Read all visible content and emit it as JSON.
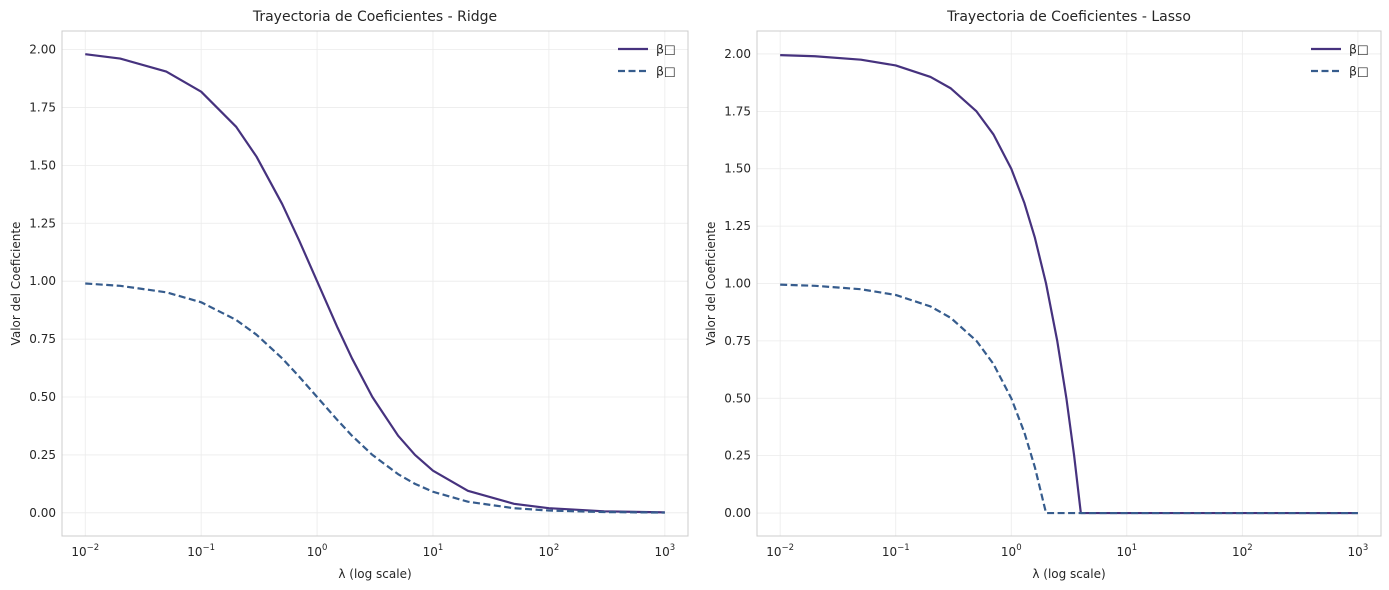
{
  "chart_data": [
    {
      "type": "line",
      "title": "Trayectoria de Coeficientes - Ridge",
      "xlabel": "λ (log scale)",
      "ylabel": "Valor del Coeficiente",
      "xscale": "log",
      "xlim": [
        0.0063,
        1585
      ],
      "ylim": [
        -0.1,
        2.08
      ],
      "xticks": [
        {
          "value": 0.01,
          "base": "10",
          "exp": "−2"
        },
        {
          "value": 0.1,
          "base": "10",
          "exp": "−1"
        },
        {
          "value": 1,
          "base": "10",
          "exp": "0"
        },
        {
          "value": 10,
          "base": "10",
          "exp": "1"
        },
        {
          "value": 100,
          "base": "10",
          "exp": "2"
        },
        {
          "value": 1000,
          "base": "10",
          "exp": "3"
        }
      ],
      "yticks": [
        "0.00",
        "0.25",
        "0.50",
        "0.75",
        "1.00",
        "1.25",
        "1.50",
        "1.75",
        "2.00"
      ],
      "grid": true,
      "legend_position": "top-right",
      "series": [
        {
          "name": "β□",
          "color": "#46327e",
          "style": "solid",
          "points": [
            [
              0.01,
              1.98
            ],
            [
              0.02,
              1.961
            ],
            [
              0.05,
              1.905
            ],
            [
              0.1,
              1.818
            ],
            [
              0.2,
              1.667
            ],
            [
              0.3,
              1.538
            ],
            [
              0.5,
              1.333
            ],
            [
              0.7,
              1.176
            ],
            [
              1,
              1.0
            ],
            [
              1.5,
              0.8
            ],
            [
              2,
              0.667
            ],
            [
              3,
              0.5
            ],
            [
              5,
              0.333
            ],
            [
              7,
              0.25
            ],
            [
              10,
              0.182
            ],
            [
              20,
              0.095
            ],
            [
              50,
              0.039
            ],
            [
              100,
              0.02
            ],
            [
              300,
              0.0066
            ],
            [
              1000,
              0.002
            ]
          ]
        },
        {
          "name": "β□",
          "color": "#365c8d",
          "style": "dashed",
          "points": [
            [
              0.01,
              0.99
            ],
            [
              0.02,
              0.98
            ],
            [
              0.05,
              0.952
            ],
            [
              0.1,
              0.909
            ],
            [
              0.2,
              0.833
            ],
            [
              0.3,
              0.769
            ],
            [
              0.5,
              0.667
            ],
            [
              0.7,
              0.588
            ],
            [
              1,
              0.5
            ],
            [
              1.5,
              0.4
            ],
            [
              2,
              0.333
            ],
            [
              3,
              0.25
            ],
            [
              5,
              0.167
            ],
            [
              7,
              0.125
            ],
            [
              10,
              0.091
            ],
            [
              20,
              0.048
            ],
            [
              50,
              0.02
            ],
            [
              100,
              0.01
            ],
            [
              300,
              0.0033
            ],
            [
              1000,
              0.001
            ]
          ]
        }
      ]
    },
    {
      "type": "line",
      "title": "Trayectoria de Coeficientes - Lasso",
      "xlabel": "λ (log scale)",
      "ylabel": "Valor del Coeficiente",
      "xscale": "log",
      "xlim": [
        0.0063,
        1585
      ],
      "ylim": [
        -0.1,
        2.1
      ],
      "xticks": [
        {
          "value": 0.01,
          "base": "10",
          "exp": "−2"
        },
        {
          "value": 0.1,
          "base": "10",
          "exp": "−1"
        },
        {
          "value": 1,
          "base": "10",
          "exp": "0"
        },
        {
          "value": 10,
          "base": "10",
          "exp": "1"
        },
        {
          "value": 100,
          "base": "10",
          "exp": "2"
        },
        {
          "value": 1000,
          "base": "10",
          "exp": "3"
        }
      ],
      "yticks": [
        "0.00",
        "0.25",
        "0.50",
        "0.75",
        "1.00",
        "1.25",
        "1.50",
        "1.75",
        "2.00"
      ],
      "grid": true,
      "legend_position": "top-right",
      "series": [
        {
          "name": "β□",
          "color": "#46327e",
          "style": "solid",
          "points": [
            [
              0.01,
              1.995
            ],
            [
              0.02,
              1.99
            ],
            [
              0.05,
              1.975
            ],
            [
              0.1,
              1.95
            ],
            [
              0.2,
              1.9
            ],
            [
              0.3,
              1.85
            ],
            [
              0.5,
              1.75
            ],
            [
              0.7,
              1.65
            ],
            [
              1,
              1.5
            ],
            [
              1.3,
              1.35
            ],
            [
              1.6,
              1.2
            ],
            [
              2,
              1.0
            ],
            [
              2.5,
              0.75
            ],
            [
              3,
              0.5
            ],
            [
              3.5,
              0.25
            ],
            [
              4,
              0.0
            ],
            [
              10,
              0.0
            ],
            [
              100,
              0.0
            ],
            [
              1000,
              0.0
            ]
          ]
        },
        {
          "name": "β□",
          "color": "#365c8d",
          "style": "dashed",
          "points": [
            [
              0.01,
              0.995
            ],
            [
              0.02,
              0.99
            ],
            [
              0.05,
              0.975
            ],
            [
              0.1,
              0.95
            ],
            [
              0.2,
              0.9
            ],
            [
              0.3,
              0.85
            ],
            [
              0.5,
              0.75
            ],
            [
              0.7,
              0.65
            ],
            [
              1,
              0.5
            ],
            [
              1.3,
              0.35
            ],
            [
              1.6,
              0.2
            ],
            [
              2,
              0.0
            ],
            [
              10,
              0.0
            ],
            [
              100,
              0.0
            ],
            [
              1000,
              0.0
            ]
          ]
        }
      ]
    }
  ]
}
